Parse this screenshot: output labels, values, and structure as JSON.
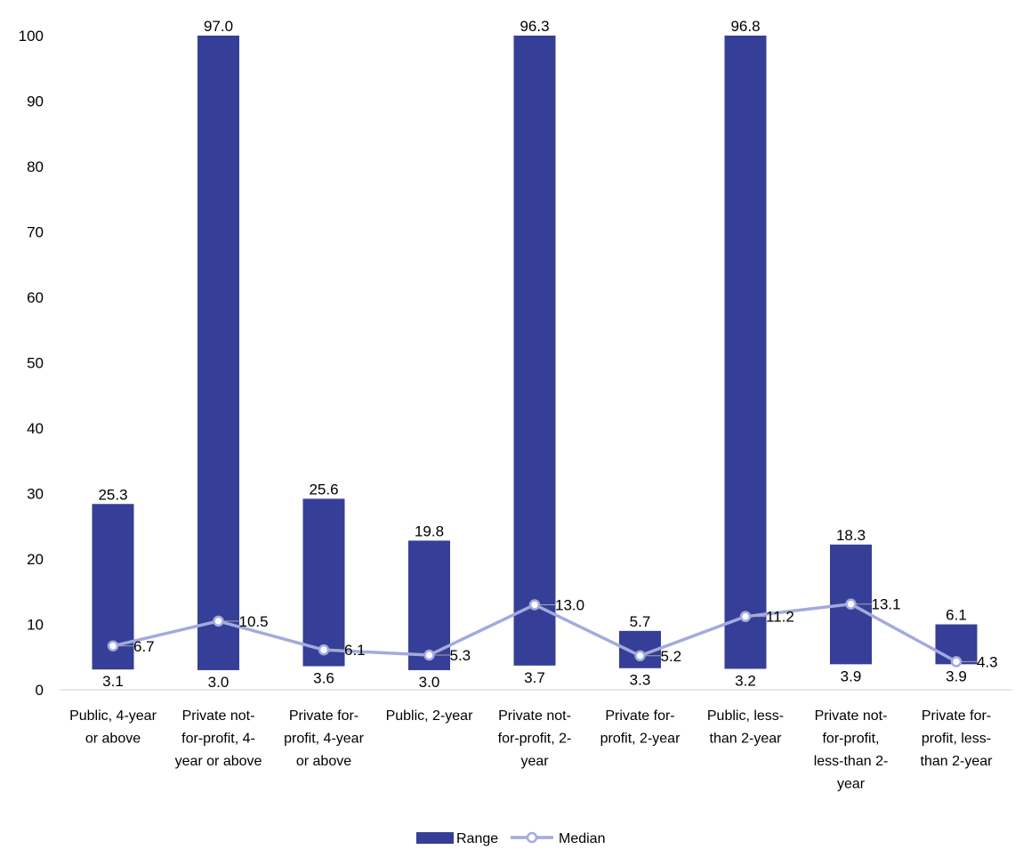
{
  "chart_data": {
    "type": "bar",
    "title": "",
    "xlabel": "",
    "ylabel": "",
    "ylim": [
      0,
      100
    ],
    "yticks": [
      0,
      10,
      20,
      30,
      40,
      50,
      60,
      70,
      80,
      90,
      100
    ],
    "grid": false,
    "legend_position": "bottom",
    "categories": [
      [
        "Public, 4-year",
        "or above"
      ],
      [
        "Private not-",
        "for-profit, 4-",
        "year or above"
      ],
      [
        "Private for-",
        "profit, 4-year",
        "or above"
      ],
      [
        "Public, 2-year"
      ],
      [
        "Private not-",
        "for-profit, 2-",
        "year"
      ],
      [
        "Private for-",
        "profit, 2-year"
      ],
      [
        "Public, less-",
        "than 2-year"
      ],
      [
        "Private not-",
        "for-profit,",
        "less-than 2-",
        "year"
      ],
      [
        "Private for-",
        "profit, less-",
        "than 2-year"
      ]
    ],
    "series": [
      {
        "name": "Range",
        "type": "floating-bar",
        "color": "#353f97",
        "low": [
          3.1,
          3.0,
          3.6,
          3.0,
          3.7,
          3.3,
          3.2,
          3.9,
          3.9
        ],
        "high": [
          28.4,
          100,
          29.2,
          22.8,
          100,
          9.0,
          100,
          22.2,
          10.0
        ],
        "high_labels": [
          "25.3",
          "97.0",
          "25.6",
          "19.8",
          "96.3",
          "5.7",
          "96.8",
          "18.3",
          "6.1"
        ],
        "low_labels": [
          "3.1",
          "3.0",
          "3.6",
          "3.0",
          "3.7",
          "3.3",
          "3.2",
          "3.9",
          "3.9"
        ]
      },
      {
        "name": "Median",
        "type": "line",
        "color": "#a3aadd",
        "values": [
          6.7,
          10.5,
          6.1,
          5.3,
          13.0,
          5.2,
          11.2,
          13.1,
          4.3
        ],
        "labels": [
          "6.7",
          "10.5",
          "6.1",
          "5.3",
          "13.0",
          "5.2",
          "11.2",
          "13.1",
          "4.3"
        ]
      }
    ]
  }
}
